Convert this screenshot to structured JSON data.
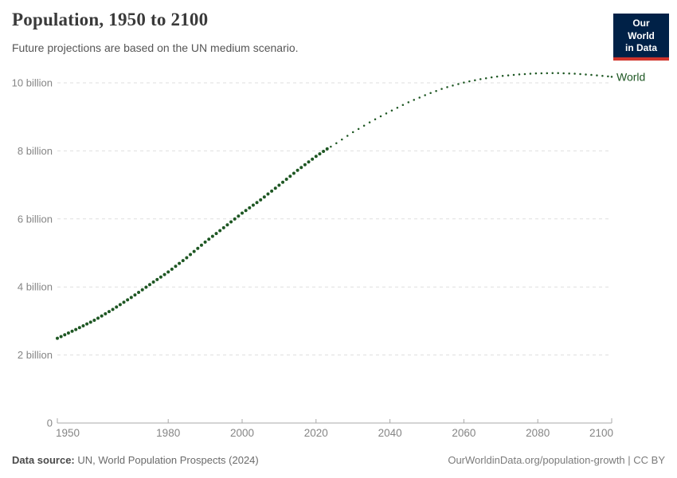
{
  "header": {
    "title": "Population, 1950 to 2100",
    "subtitle": "Future projections are based on the UN medium scenario.",
    "logo": {
      "line1": "Our World",
      "line2": "in Data"
    }
  },
  "colors": {
    "series_green": "#1e5723",
    "grid": "#dfdfdf",
    "axis": "#a8a8a8",
    "tick_text": "#858585",
    "title_text": "#3a3a3a",
    "logo_bg": "#002147",
    "logo_accent": "#d0342c"
  },
  "chart_data": {
    "type": "line",
    "title": "Population, 1950 to 2100",
    "subtitle": "Future projections are based on the UN medium scenario.",
    "xlabel": "",
    "ylabel": "",
    "x_range": [
      1950,
      2100
    ],
    "y_range": [
      0,
      10.5
    ],
    "grid": "horizontal-dashed",
    "legend_position": "end-of-line",
    "xticks": [
      1950,
      1980,
      2000,
      2020,
      2040,
      2060,
      2080,
      2100
    ],
    "yticks": [
      {
        "value": 0,
        "label": "0"
      },
      {
        "value": 2,
        "label": "2 billion"
      },
      {
        "value": 4,
        "label": "4 billion"
      },
      {
        "value": 6,
        "label": "6 billion"
      },
      {
        "value": 8,
        "label": "8 billion"
      },
      {
        "value": 10,
        "label": "10 billion"
      }
    ],
    "series": [
      {
        "name": "World",
        "color": "#1e5723",
        "unit": "billion people",
        "observed_until": 2023,
        "observed_style": "dense-dots-solid",
        "projection_style": "dotted",
        "points_observed": [
          [
            1950,
            2.49
          ],
          [
            1955,
            2.75
          ],
          [
            1960,
            3.02
          ],
          [
            1965,
            3.34
          ],
          [
            1970,
            3.69
          ],
          [
            1975,
            4.07
          ],
          [
            1980,
            4.44
          ],
          [
            1985,
            4.86
          ],
          [
            1990,
            5.32
          ],
          [
            1995,
            5.74
          ],
          [
            2000,
            6.17
          ],
          [
            2005,
            6.56
          ],
          [
            2010,
            6.99
          ],
          [
            2015,
            7.43
          ],
          [
            2020,
            7.84
          ],
          [
            2023,
            8.06
          ]
        ],
        "points_projected": [
          [
            2023,
            8.06
          ],
          [
            2025,
            8.19
          ],
          [
            2030,
            8.55
          ],
          [
            2035,
            8.87
          ],
          [
            2040,
            9.16
          ],
          [
            2045,
            9.43
          ],
          [
            2050,
            9.66
          ],
          [
            2055,
            9.86
          ],
          [
            2060,
            10.01
          ],
          [
            2065,
            10.12
          ],
          [
            2070,
            10.2
          ],
          [
            2075,
            10.25
          ],
          [
            2080,
            10.28
          ],
          [
            2085,
            10.29
          ],
          [
            2090,
            10.27
          ],
          [
            2095,
            10.23
          ],
          [
            2100,
            10.18
          ]
        ]
      }
    ]
  },
  "footer": {
    "source_label": "Data source:",
    "source_value": "UN, World Population Prospects (2024)",
    "link": "OurWorldinData.org/population-growth | CC BY"
  }
}
